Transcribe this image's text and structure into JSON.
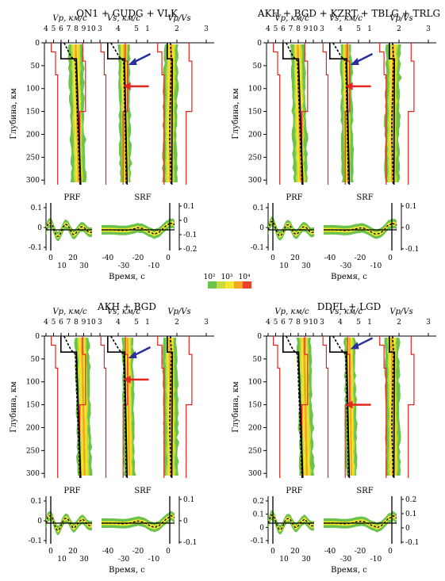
{
  "figure": {
    "depth_axis_label": "Глубина, км",
    "time_axis_label": "Время, с",
    "vp_label": "Vp, км/с",
    "vs_label": "Vs, км/с",
    "vpvs_label": "Vp/Vs",
    "prf_label": "PRF",
    "srf_label": "SRF",
    "vp_ticks": [
      "4",
      "5",
      "6",
      "7",
      "8",
      "9",
      "10"
    ],
    "vs_ticks": [
      "3",
      "4",
      "5"
    ],
    "vpvs_ticks": [
      "1",
      "2",
      "3"
    ],
    "depth_ticks": [
      "0",
      "50",
      "100",
      "150",
      "200",
      "250",
      "300"
    ],
    "legend": {
      "labels": [
        "10²",
        "10³",
        "10⁴"
      ],
      "colors": [
        "#6cc24a",
        "#c8dc3c",
        "#f2e830",
        "#f5a623",
        "#e8432a"
      ]
    },
    "colors": {
      "bound": "#e3261e",
      "blue_arrow": "#2b2f9e",
      "red_arrow": "#e3261e",
      "green": "#6cc24a",
      "yellow": "#f2e830",
      "orange": "#f5a623"
    }
  },
  "panels": [
    {
      "title": "ON1 + GUDG + VLK",
      "prf_ticks": [
        "0.1",
        "0",
        "-0.1"
      ],
      "prf_xticks_top": [
        "0",
        "20"
      ],
      "prf_xticks_bottom": [
        "10",
        "30"
      ],
      "srf_ticks": [
        "0.1",
        "0",
        "-0.1",
        "-0.2"
      ],
      "srf_xticks_top": [
        "-40",
        "-20",
        "0"
      ],
      "srf_xticks_bottom": [
        "-30",
        "-10"
      ]
    },
    {
      "title": "AKH + BGD + KZRT + TBLG + TRLG",
      "prf_ticks": [
        "0.1",
        "0",
        "-0.1"
      ],
      "prf_xticks_top": [
        "0",
        "20"
      ],
      "prf_xticks_bottom": [
        "10",
        "30"
      ],
      "srf_ticks": [
        "0.1",
        "0",
        "-0.1"
      ],
      "srf_xticks_top": [
        "-40",
        "-20",
        "0"
      ],
      "srf_xticks_bottom": [
        "-30",
        "-10"
      ]
    },
    {
      "title": "AKH + BGD",
      "prf_ticks": [
        "0.1",
        "0",
        "-0.1"
      ],
      "prf_xticks_top": [
        "0",
        "20"
      ],
      "prf_xticks_bottom": [
        "10",
        "30"
      ],
      "srf_ticks": [
        "0.1",
        "0",
        "-0.1"
      ],
      "srf_xticks_top": [
        "-40",
        "-20",
        "0"
      ],
      "srf_xticks_bottom": [
        "-30",
        "-10"
      ]
    },
    {
      "title": "DDFL + LGD",
      "prf_ticks": [
        "0.2",
        "0.1",
        "0",
        "-0.1"
      ],
      "prf_xticks_top": [
        "0",
        "20"
      ],
      "prf_xticks_bottom": [
        "10",
        "30"
      ],
      "srf_ticks": [
        "0.2",
        "0.1",
        "0",
        "-0.1"
      ],
      "srf_xticks_top": [
        "-40",
        "-20",
        "0"
      ],
      "srf_xticks_bottom": [
        "-30",
        "-10"
      ]
    }
  ]
}
